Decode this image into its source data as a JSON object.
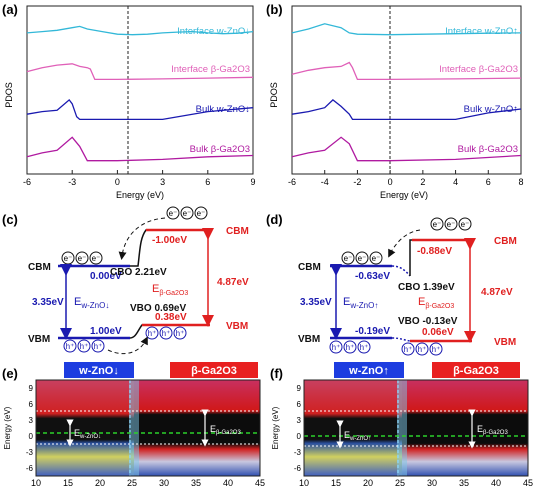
{
  "panel_labels": [
    "(a)",
    "(b)",
    "(c)",
    "(d)",
    "(e)",
    "(f)"
  ],
  "pdos": {
    "ylabel": "PDOS",
    "xlabel": "Energy (eV)",
    "colors": {
      "interface_zno": "#33b8d8",
      "interface_ga2o3": "#e060b8",
      "bulk_zno": "#1a1ab0",
      "bulk_ga2o3": "#b01aa0"
    }
  },
  "chart_data": [
    {
      "type": "line",
      "panel": "(a)",
      "xlabel": "Energy (eV)",
      "ylabel": "PDOS",
      "xlim": [
        -6,
        9
      ],
      "xticks": [
        "-6",
        "-3",
        "0",
        "3",
        "6",
        "9"
      ],
      "series": [
        {
          "name": "Interface w-ZnO↓",
          "x": [
            -6,
            -5,
            -4,
            -3,
            -2.5,
            -2,
            -1,
            0,
            1,
            2,
            3,
            4,
            5,
            6,
            7,
            8,
            9
          ],
          "y": [
            0.35,
            0.4,
            0.45,
            0.55,
            0.6,
            0.5,
            0.4,
            0.3,
            0.28,
            0.3,
            0.35,
            0.38,
            0.4,
            0.35,
            0.32,
            0.34,
            0.4
          ]
        },
        {
          "name": "Interface β-Ga2O3",
          "x": [
            -6,
            -5,
            -4,
            -3,
            -2.5,
            -2,
            -1.8,
            -1.5,
            0,
            3,
            6,
            9
          ],
          "y": [
            0.4,
            0.55,
            0.65,
            0.7,
            0.6,
            0.55,
            0.5,
            0.1,
            0.1,
            0.12,
            0.15,
            0.18
          ]
        },
        {
          "name": "Bulk w-ZnO↓",
          "x": [
            -6,
            -5,
            -4,
            -3.2,
            -3,
            -2.7,
            -2.5,
            0,
            3,
            6,
            9
          ],
          "y": [
            0.3,
            0.4,
            0.45,
            0.85,
            0.7,
            0.2,
            0.1,
            0.1,
            0.1,
            0.4,
            0.55
          ]
        },
        {
          "name": "Bulk β-Ga2O3",
          "x": [
            -6,
            -5,
            -4,
            -3,
            -2.5,
            -2,
            0,
            3,
            6,
            9
          ],
          "y": [
            0.2,
            0.35,
            0.45,
            0.95,
            0.6,
            0.05,
            0.05,
            0.1,
            0.2,
            0.25
          ]
        }
      ]
    },
    {
      "type": "line",
      "panel": "(b)",
      "xlabel": "Energy (eV)",
      "ylabel": "PDOS",
      "xlim": [
        -6,
        8
      ],
      "xticks": [
        "-6",
        "-4",
        "-2",
        "0",
        "2",
        "4",
        "6",
        "8"
      ],
      "series": [
        {
          "name": "Interface w-ZnO↑",
          "x": [
            -6,
            -5,
            -4,
            -3,
            -2.5,
            -2,
            0,
            2,
            4,
            6,
            8
          ],
          "y": [
            0.35,
            0.5,
            0.7,
            0.55,
            0.35,
            0.3,
            0.28,
            0.3,
            0.32,
            0.34,
            0.35
          ]
        },
        {
          "name": "Interface β-Ga2O3",
          "x": [
            -6,
            -5,
            -4,
            -3,
            -2.5,
            -2.3,
            -2,
            0,
            4,
            8
          ],
          "y": [
            0.3,
            0.45,
            0.55,
            0.6,
            0.75,
            0.55,
            0.1,
            0.1,
            0.12,
            0.15
          ]
        },
        {
          "name": "Bulk w-ZnO↑",
          "x": [
            -6,
            -5,
            -4,
            -3.5,
            -3,
            -2.5,
            -2.3,
            0,
            4,
            6,
            8
          ],
          "y": [
            0.3,
            0.4,
            0.55,
            0.85,
            0.6,
            0.3,
            0.1,
            0.1,
            0.1,
            0.35,
            0.5
          ]
        },
        {
          "name": "Bulk β-Ga2O3",
          "x": [
            -6,
            -5,
            -4,
            -3,
            -2.5,
            -2,
            0,
            4,
            8
          ],
          "y": [
            0.2,
            0.35,
            0.45,
            0.95,
            0.7,
            0.05,
            0.05,
            0.1,
            0.25
          ]
        }
      ]
    },
    {
      "type": "heatmap",
      "panel": "(e)",
      "ylabel": "Energy (eV)",
      "xticks": [
        "10",
        "15",
        "20",
        "25",
        "30",
        "35",
        "40",
        "45"
      ],
      "yticks": [
        "9",
        "6",
        "3",
        "0",
        "-3",
        "-6"
      ]
    },
    {
      "type": "heatmap",
      "panel": "(f)",
      "ylabel": "Energy (eV)",
      "xticks": [
        "10",
        "15",
        "20",
        "25",
        "30",
        "35",
        "40",
        "45"
      ],
      "yticks": [
        "9",
        "6",
        "3",
        "0",
        "-3",
        "-6"
      ]
    }
  ],
  "band_c": {
    "cbm_left": "CBM",
    "vbm_left": "VBM",
    "cbm_right": "CBM",
    "vbm_right": "VBM",
    "zno_gap": "3.35eV",
    "ga_gap": "4.87eV",
    "zno_cb": "0.00eV",
    "zno_vb": "1.00eV",
    "ga_cb": "-1.00eV",
    "ga_vb": "0.38eV",
    "cbo": "CBO 2.21eV",
    "vbo": "VBO 0.69eV",
    "e_zno": "E",
    "e_zno_sub": "w-ZnO↓",
    "e_ga": "E",
    "e_ga_sub": "β-Ga2O3"
  },
  "band_d": {
    "cbm_left": "CBM",
    "vbm_left": "VBM",
    "cbm_right": "CBM",
    "vbm_right": "VBM",
    "zno_gap": "3.35eV",
    "ga_gap": "4.87eV",
    "zno_cb": "-0.63eV",
    "zno_vb": "-0.19eV",
    "ga_cb": "-0.88eV",
    "ga_vb": "0.06eV",
    "cbo": "CBO 1.39eV",
    "vbo": "VBO -0.13eV",
    "e_zno": "E",
    "e_zno_sub": "w-ZnO↑",
    "e_ga": "E",
    "e_ga_sub": "β-Ga2O3"
  },
  "map_e": {
    "left_tag": "w-ZnO↓",
    "right_tag": "β-Ga2O3",
    "e_left_sub": "w-ZnO↓",
    "e_right_sub": "β-Ga2O3"
  },
  "map_f": {
    "left_tag": "w-ZnO↑",
    "right_tag": "β-Ga2O3",
    "e_left_sub": "w-ZnO↑",
    "e_right_sub": "β-Ga2O3"
  }
}
